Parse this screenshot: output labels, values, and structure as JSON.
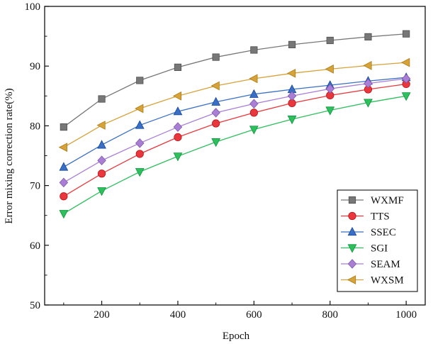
{
  "chart_data": {
    "type": "line",
    "xlabel": "Epoch",
    "ylabel": "Error mixing correction rate(%)",
    "xlim": [
      50,
      1050
    ],
    "ylim": [
      50,
      100
    ],
    "xticks": [
      200,
      400,
      600,
      800,
      1000
    ],
    "yticks": [
      50,
      60,
      70,
      80,
      90,
      100
    ],
    "x": [
      100,
      200,
      300,
      400,
      500,
      600,
      700,
      800,
      900,
      1000
    ],
    "grid": false,
    "legend_position": "bottom-right",
    "series": [
      {
        "name": "WXMF",
        "marker": "square",
        "color": "#777777",
        "values": [
          79.8,
          84.5,
          87.6,
          89.8,
          91.5,
          92.7,
          93.6,
          94.3,
          94.9,
          95.4
        ]
      },
      {
        "name": "TTS",
        "marker": "circle",
        "color": "#e8383d",
        "values": [
          68.2,
          72.0,
          75.3,
          78.1,
          80.4,
          82.2,
          83.8,
          85.1,
          86.1,
          87.0
        ]
      },
      {
        "name": "SSEC",
        "marker": "triangle-up",
        "color": "#3a6fc4",
        "values": [
          73.1,
          76.8,
          80.1,
          82.4,
          84.0,
          85.3,
          86.1,
          86.8,
          87.5,
          88.1
        ]
      },
      {
        "name": "SGI",
        "marker": "triangle-down",
        "color": "#2fbf5f",
        "values": [
          65.3,
          69.1,
          72.3,
          74.9,
          77.3,
          79.4,
          81.1,
          82.6,
          83.9,
          85.0
        ]
      },
      {
        "name": "SEAM",
        "marker": "diamond",
        "color": "#a97fd6",
        "values": [
          70.5,
          74.2,
          77.1,
          79.8,
          82.2,
          83.7,
          85.0,
          86.2,
          87.1,
          87.9
        ]
      },
      {
        "name": "WXSM",
        "marker": "triangle-left",
        "color": "#d6a23a",
        "values": [
          76.4,
          80.1,
          82.9,
          85.0,
          86.7,
          87.9,
          88.8,
          89.5,
          90.1,
          90.6
        ]
      }
    ]
  }
}
